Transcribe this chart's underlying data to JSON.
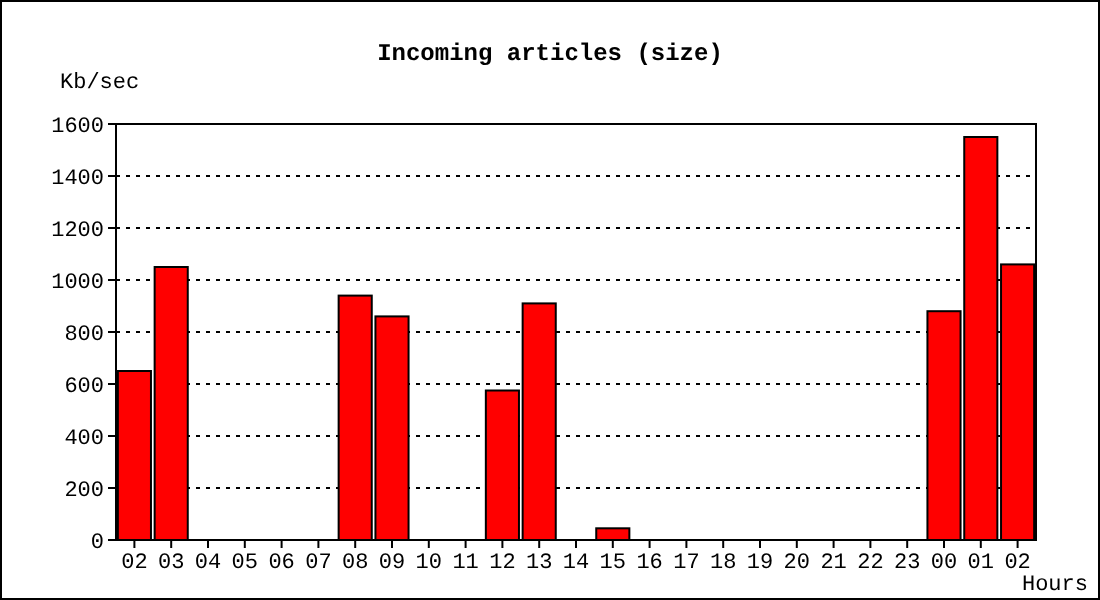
{
  "chart_data": {
    "type": "bar",
    "title": "Incoming articles (size)",
    "ylabel": "Kb/sec",
    "xlabel": "Hours",
    "categories": [
      "02",
      "03",
      "04",
      "05",
      "06",
      "07",
      "08",
      "09",
      "10",
      "11",
      "12",
      "13",
      "14",
      "15",
      "16",
      "17",
      "18",
      "19",
      "20",
      "21",
      "22",
      "23",
      "00",
      "01",
      "02"
    ],
    "values": [
      650,
      1050,
      0,
      0,
      0,
      0,
      940,
      860,
      0,
      0,
      575,
      910,
      0,
      45,
      0,
      0,
      0,
      0,
      0,
      0,
      0,
      0,
      880,
      1550,
      1060
    ],
    "color": "#ff0000",
    "ylim": [
      0,
      1600
    ],
    "yticks": [
      0,
      200,
      400,
      600,
      800,
      1000,
      1200,
      1400,
      1600
    ],
    "grid": "y"
  }
}
